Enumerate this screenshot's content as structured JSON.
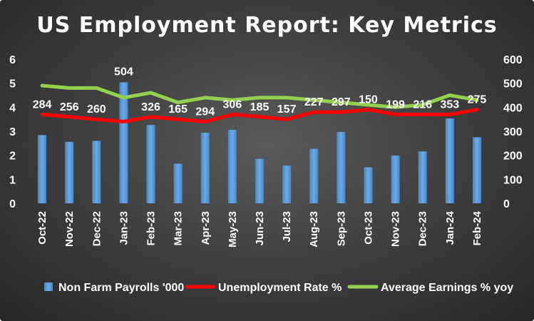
{
  "chart_data": {
    "type": "bar",
    "title": "US Employment Report: Key Metrics",
    "categories": [
      "Oct-22",
      "Nov-22",
      "Dec-22",
      "Jan-23",
      "Feb-23",
      "Mar-23",
      "Apr-23",
      "May-23",
      "Jun-23",
      "Jul-23",
      "Aug-23",
      "Sep-23",
      "Oct-23",
      "Nov-23",
      "Dec-23",
      "Jan-24",
      "Feb-24"
    ],
    "series": [
      {
        "name": "Non Farm Payrolls '000",
        "type": "bar",
        "axis": "right",
        "color": "#5b9bd5",
        "values": [
          284,
          256,
          260,
          504,
          326,
          165,
          294,
          306,
          185,
          157,
          227,
          297,
          150,
          199,
          216,
          353,
          275
        ]
      },
      {
        "name": "Unemployment Rate %",
        "type": "line",
        "axis": "left",
        "color": "#ff0000",
        "values": [
          3.7,
          3.6,
          3.5,
          3.4,
          3.6,
          3.5,
          3.4,
          3.7,
          3.6,
          3.5,
          3.8,
          3.8,
          3.9,
          3.7,
          3.7,
          3.7,
          3.9
        ]
      },
      {
        "name": "Average Earnings % yoy",
        "type": "line",
        "axis": "left",
        "color": "#92d050",
        "values": [
          4.9,
          4.8,
          4.8,
          4.4,
          4.6,
          4.2,
          4.4,
          4.3,
          4.4,
          4.4,
          4.3,
          4.2,
          4.1,
          4.0,
          4.1,
          4.5,
          4.3
        ]
      }
    ],
    "y_left": {
      "ticks": [
        "0",
        "1",
        "2",
        "3",
        "4",
        "5",
        "6"
      ],
      "range": [
        0,
        6
      ]
    },
    "y_right": {
      "ticks": [
        "0",
        "100",
        "200",
        "300",
        "400",
        "500",
        "600"
      ],
      "range": [
        0,
        600
      ]
    },
    "grid": false,
    "legend": "bottom"
  }
}
